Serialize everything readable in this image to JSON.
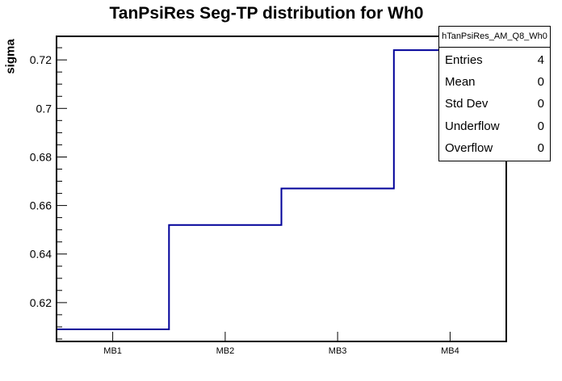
{
  "title": "TanPsiRes Seg-TP distribution for Wh0",
  "chart_data": {
    "type": "line",
    "style": "step-histogram",
    "categories": [
      "MB1",
      "MB2",
      "MB3",
      "MB4"
    ],
    "values": [
      0.609,
      0.652,
      0.667,
      0.724
    ],
    "title": "TanPsiRes Seg-TP distribution for Wh0",
    "xlabel": "",
    "ylabel": "sigma",
    "ylim": [
      0.604,
      0.7297
    ],
    "y_major_ticks": [
      0.62,
      0.64,
      0.66,
      0.68,
      0.7,
      0.72
    ],
    "y_tick_labels": [
      "0.62",
      "0.64",
      "0.66",
      "0.68",
      "0.7",
      "0.72"
    ],
    "y_minor_step": 0.005,
    "grid": false,
    "legend_position": "none",
    "line_color": "#000099",
    "axis_color": "#000000"
  },
  "stats_box": {
    "header": "hTanPsiRes_AM_Q8_Wh0",
    "rows": [
      {
        "label": "Entries",
        "value": "4"
      },
      {
        "label": "Mean",
        "value": "0"
      },
      {
        "label": "Std Dev",
        "value": "0"
      },
      {
        "label": "Underflow",
        "value": "0"
      },
      {
        "label": "Overflow",
        "value": "0"
      }
    ]
  }
}
